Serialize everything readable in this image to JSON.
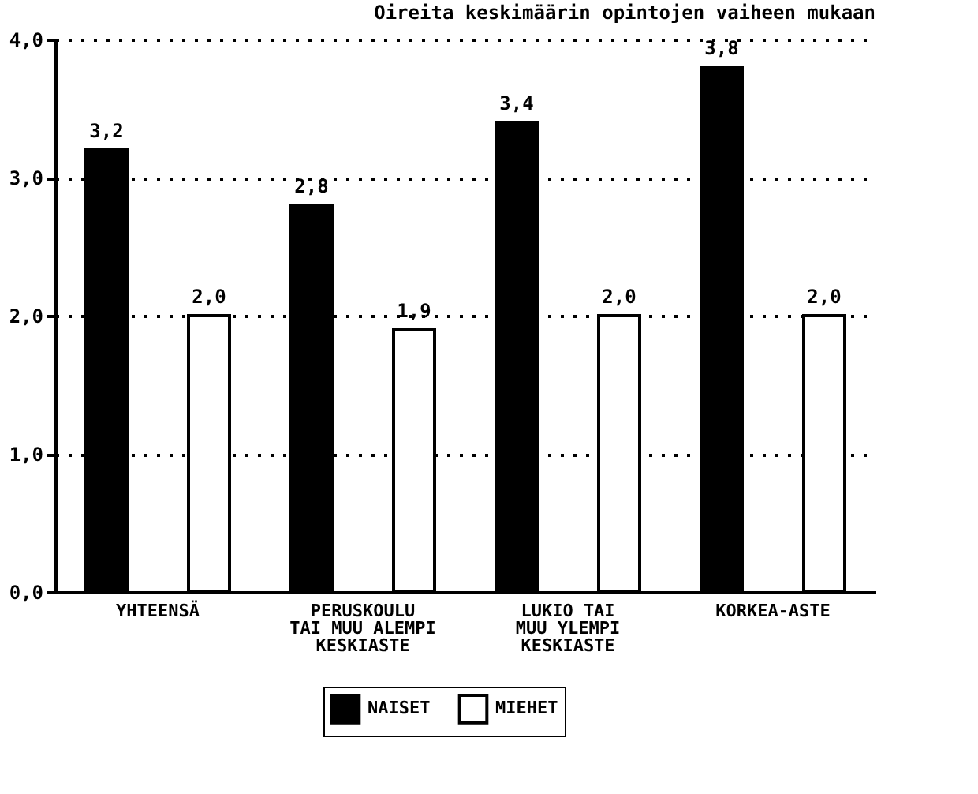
{
  "chart_data": {
    "type": "bar",
    "title": "Oireita keskimäärin opintojen vaiheen mukaan",
    "categories": [
      "YHTEENSÄ",
      "PERUSKOULU\nTAI MUU ALEMPI\nKESKIASTE",
      "LUKIO TAI\nMUU YLEMPI\nKESKIASTE",
      "KORKEA-ASTE"
    ],
    "series": [
      {
        "name": "NAISET",
        "color": "#000000",
        "values": [
          3.2,
          2.8,
          3.4,
          3.8
        ],
        "value_labels": [
          "3,2",
          "2,8",
          "3,4",
          "3,8"
        ]
      },
      {
        "name": "MIEHET",
        "color": "#ffffff",
        "values": [
          2.0,
          1.9,
          2.0,
          2.0
        ],
        "value_labels": [
          "2,0",
          "1,9",
          "2,0",
          "2,0"
        ]
      }
    ],
    "ylim": [
      0,
      4
    ],
    "yticks": [
      {
        "value": 0,
        "label": "0,0"
      },
      {
        "value": 1,
        "label": "1,0"
      },
      {
        "value": 2,
        "label": "2,0"
      },
      {
        "value": 3,
        "label": "3,0"
      },
      {
        "value": 4,
        "label": "4,0"
      }
    ],
    "grid": "y",
    "legend": "bottom"
  }
}
